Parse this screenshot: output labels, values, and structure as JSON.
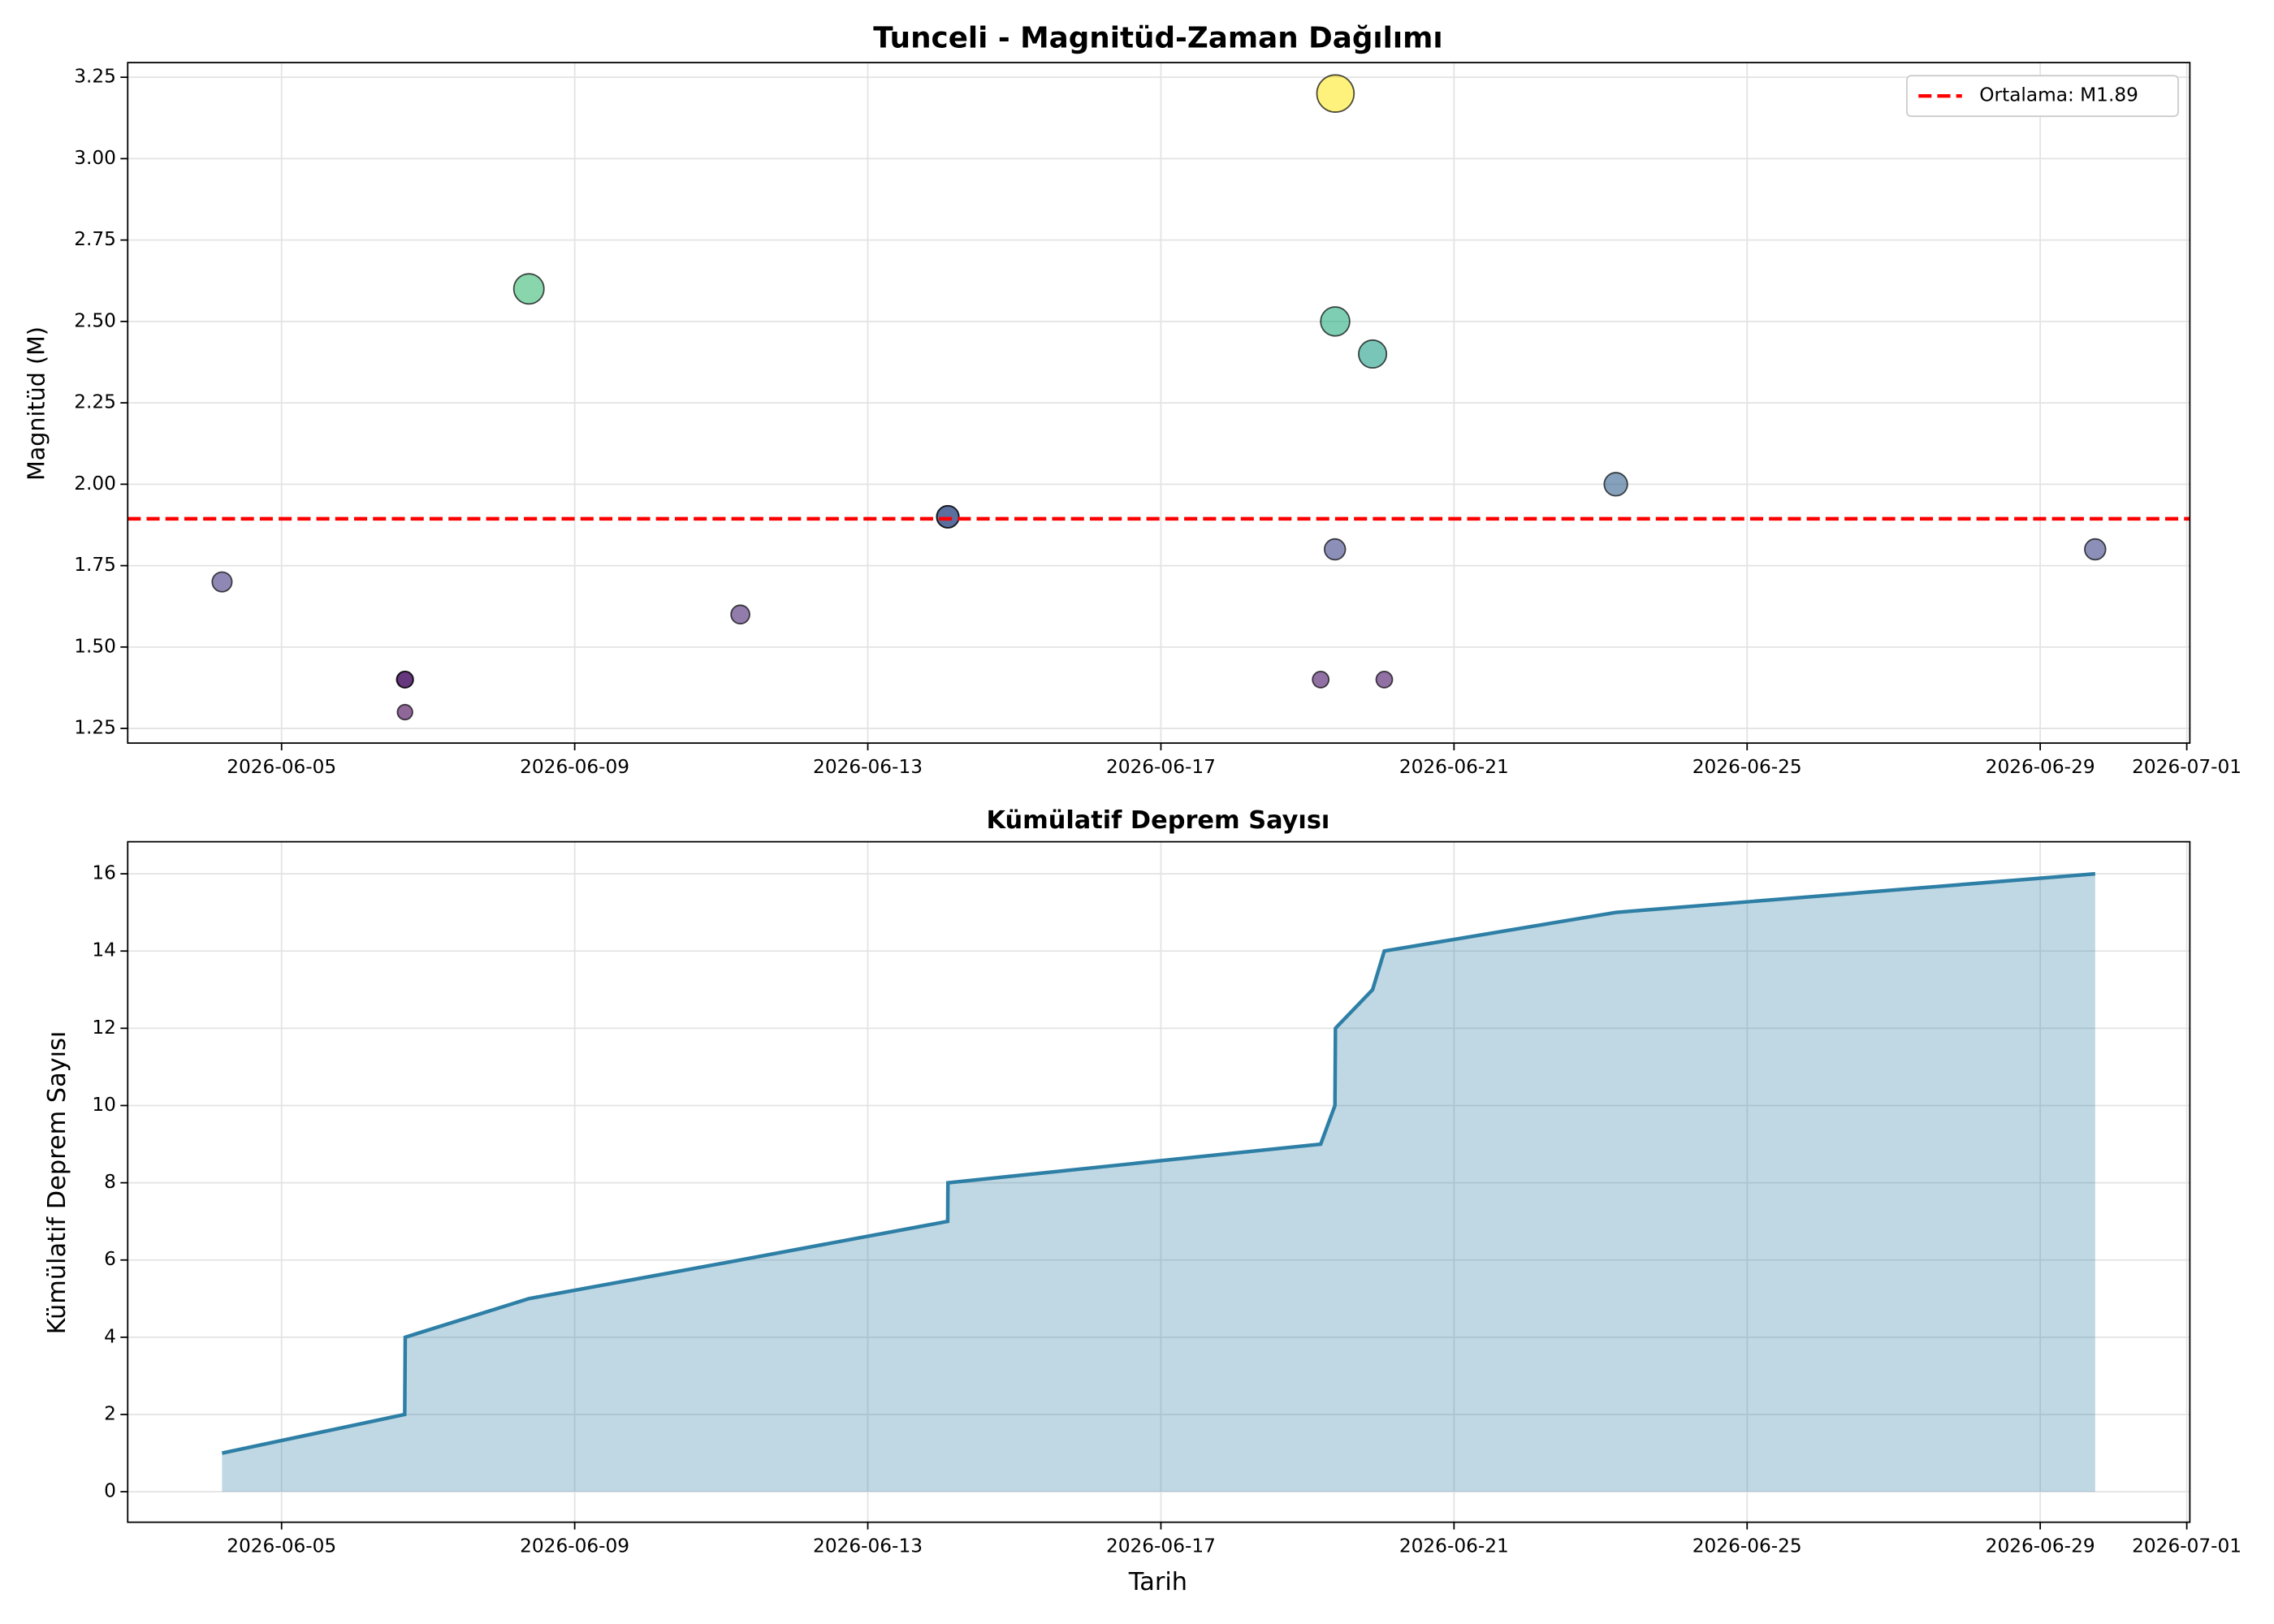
{
  "chart_data": [
    {
      "type": "scatter",
      "title": "Tunceli - Magnitüd-Zaman Dağılımı",
      "ylabel": "Magnitüd (M)",
      "x": [
        "2026-06-04T04:30",
        "2026-06-06T16:20",
        "2026-06-06T16:25",
        "2026-06-06T16:30",
        "2026-06-08T09:00",
        "2026-06-11T06:15",
        "2026-06-14T02:10",
        "2026-06-14T02:15",
        "2026-06-19T04:20",
        "2026-06-19T09:00",
        "2026-06-19T09:05",
        "2026-06-19T09:10",
        "2026-06-19T21:20",
        "2026-06-20T01:10",
        "2026-06-23T05:00",
        "2026-06-29T18:00"
      ],
      "values": [
        1.7,
        1.4,
        1.3,
        1.4,
        2.6,
        1.6,
        1.9,
        1.9,
        1.4,
        1.8,
        2.5,
        3.2,
        2.4,
        1.4,
        2.0,
        1.8
      ],
      "colors": [
        "#443983",
        "#471365",
        "#440154",
        "#471365",
        "#3bbb75",
        "#482475",
        "#3a548c",
        "#3a548c",
        "#471365",
        "#404688",
        "#27ad81",
        "#fde725",
        "#1fa088",
        "#471365",
        "#33638d",
        "#404688"
      ],
      "mean_line": {
        "label": "Ortalama: M1.89",
        "value": 1.894,
        "color": "#ff0000"
      },
      "legend": "upper right",
      "xlim": [
        "2026-06-02T21:36",
        "2026-07-01T01:00"
      ],
      "xticks": [
        "2026-06-05",
        "2026-06-09",
        "2026-06-13",
        "2026-06-17",
        "2026-06-21",
        "2026-06-25",
        "2026-06-29",
        "2026-07-01"
      ],
      "ylim": [
        1.205,
        3.295
      ],
      "yticks": [
        1.25,
        {
          "value": 1.5,
          "label": "1.50"
        },
        1.75,
        {
          "value": 2,
          "label": "2.00"
        },
        2.25,
        {
          "value": 2.5,
          "label": "2.50"
        },
        2.75,
        {
          "value": 3,
          "label": "3.00"
        },
        3.25
      ],
      "grid": true
    },
    {
      "type": "area",
      "title": "Kümülatif Deprem Sayısı",
      "xlabel": "Tarih",
      "ylabel": "Kümülatif Deprem Sayısı",
      "x": [
        "2026-06-04T04:30",
        "2026-06-06T16:20",
        "2026-06-06T16:25",
        "2026-06-06T16:30",
        "2026-06-08T09:00",
        "2026-06-11T06:15",
        "2026-06-14T02:10",
        "2026-06-14T02:15",
        "2026-06-19T04:20",
        "2026-06-19T09:00",
        "2026-06-19T09:05",
        "2026-06-19T09:10",
        "2026-06-19T21:20",
        "2026-06-20T01:10",
        "2026-06-23T05:00",
        "2026-06-29T18:00"
      ],
      "values": [
        1,
        2,
        3,
        4,
        5,
        6,
        7,
        8,
        9,
        10,
        11,
        12,
        13,
        14,
        15,
        16
      ],
      "color": "#2e7fa6",
      "xlim": [
        "2026-06-02T21:36",
        "2026-07-01T01:00"
      ],
      "xticks": [
        "2026-06-05",
        "2026-06-09",
        "2026-06-13",
        "2026-06-17",
        "2026-06-21",
        "2026-06-25",
        "2026-06-29",
        "2026-07-01"
      ],
      "ylim": [
        -0.79,
        16.83
      ],
      "yticks": [
        0,
        2,
        4,
        6,
        8,
        10,
        12,
        14,
        16
      ],
      "grid": true
    }
  ]
}
